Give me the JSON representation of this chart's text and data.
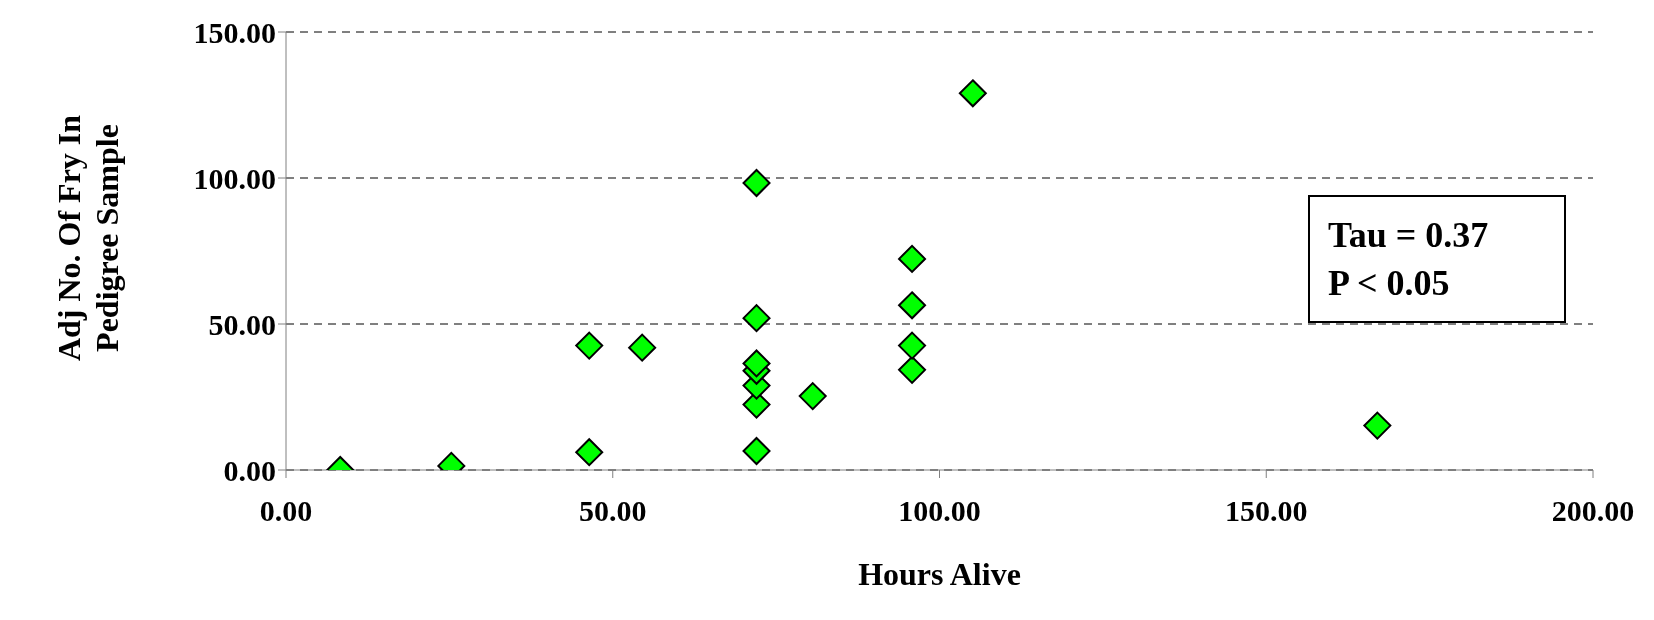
{
  "chart_data": {
    "type": "scatter",
    "xlabel": "Hours Alive",
    "ylabel": "Adj No. Of Fry In Pedigree Sample",
    "x": [
      8.3,
      25.3,
      46.4,
      46.4,
      54.5,
      72,
      72,
      72,
      72,
      72,
      72,
      72,
      80.6,
      95.8,
      95.8,
      95.8,
      95.8,
      105.1,
      167
    ],
    "series": [
      {
        "color": "#00ff00",
        "values": [
          0,
          1.4,
          6.1,
          42.6,
          41.9,
          6.5,
          22.4,
          28.9,
          34,
          36.5,
          52,
          98.3,
          25.3,
          34.3,
          42.6,
          56.4,
          72.3,
          129,
          15.2
        ]
      }
    ],
    "xlim": [
      0,
      200
    ],
    "xticks": [
      {
        "value": 0,
        "label": "0.00"
      },
      {
        "value": 50,
        "label": "50.00"
      },
      {
        "value": 100,
        "label": "100.00"
      },
      {
        "value": 150,
        "label": "150.00"
      },
      {
        "value": 200,
        "label": "200.00"
      }
    ],
    "ylim": [
      0,
      150
    ],
    "yticks": [
      {
        "value": 0,
        "label": "0.00"
      },
      {
        "value": 50,
        "label": "50.00"
      },
      {
        "value": 100,
        "label": "100.00"
      },
      {
        "value": 150,
        "label": "150.00"
      }
    ],
    "grid": "y",
    "marker": "diamond",
    "annotations": [
      "Tau = 0.37",
      "P < 0.05"
    ]
  }
}
